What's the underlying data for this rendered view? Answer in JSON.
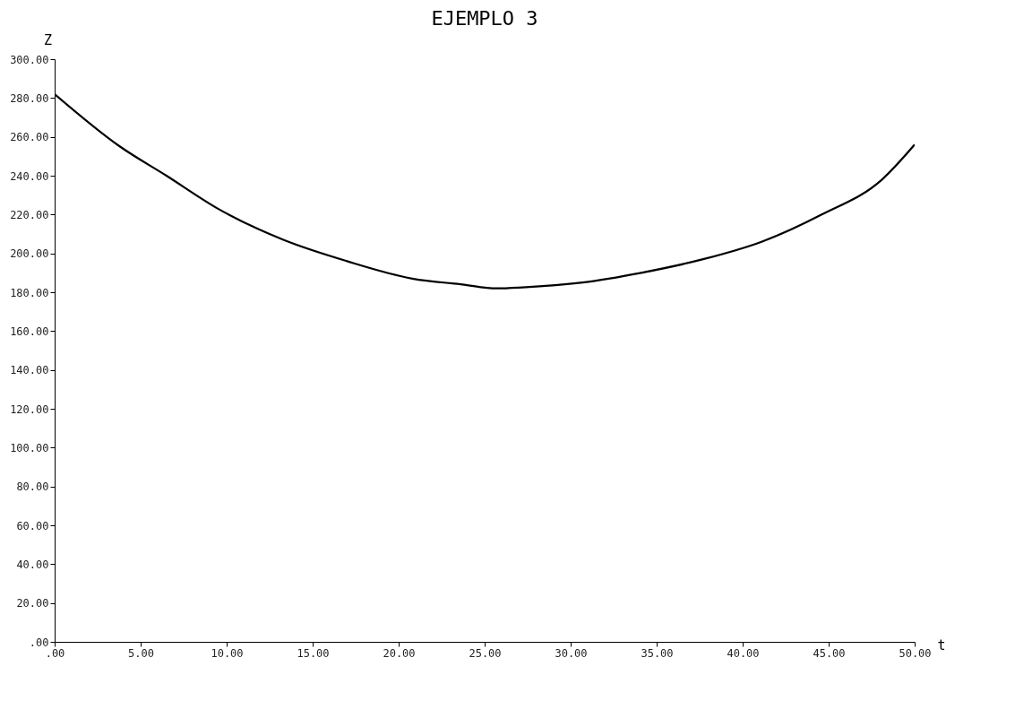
{
  "chart_data": {
    "type": "line",
    "title": "EJEMPLO 3",
    "xlabel": "t",
    "ylabel": "Z",
    "x": [
      0,
      3.8,
      6.5,
      9.5,
      13.3,
      17.0,
      20.8,
      23.7,
      25.7,
      27.2,
      30.7,
      34.1,
      37.7,
      41.1,
      44.6,
      48.1,
      50
    ],
    "series": [
      {
        "color": "#000000",
        "values": [
          282,
          255,
          240,
          223,
          207,
          196,
          187,
          184,
          182,
          182.5,
          185,
          190,
          197,
          206,
          220,
          238,
          256
        ]
      }
    ],
    "xlim": [
      0,
      50
    ],
    "xticks": [
      {
        "value": 0,
        "label": ".00"
      },
      {
        "value": 5,
        "label": "5.00"
      },
      {
        "value": 10,
        "label": "10.00"
      },
      {
        "value": 15,
        "label": "15.00"
      },
      {
        "value": 20,
        "label": "20.00"
      },
      {
        "value": 25,
        "label": "25.00"
      },
      {
        "value": 30,
        "label": "30.00"
      },
      {
        "value": 35,
        "label": "35.00"
      },
      {
        "value": 40,
        "label": "40.00"
      },
      {
        "value": 45,
        "label": "45.00"
      },
      {
        "value": 50,
        "label": "50.00"
      }
    ],
    "ylim": [
      0,
      300
    ],
    "yticks": [
      {
        "value": 0,
        "label": ".00"
      },
      {
        "value": 20,
        "label": "20.00"
      },
      {
        "value": 40,
        "label": "40.00"
      },
      {
        "value": 60,
        "label": "60.00"
      },
      {
        "value": 80,
        "label": "80.00"
      },
      {
        "value": 100,
        "label": "100.00"
      },
      {
        "value": 120,
        "label": "120.00"
      },
      {
        "value": 140,
        "label": "140.00"
      },
      {
        "value": 160,
        "label": "160.00"
      },
      {
        "value": 180,
        "label": "180.00"
      },
      {
        "value": 200,
        "label": "200.00"
      },
      {
        "value": 220,
        "label": "220.00"
      },
      {
        "value": 240,
        "label": "240.00"
      },
      {
        "value": 260,
        "label": "260.00"
      },
      {
        "value": 280,
        "label": "280.00"
      },
      {
        "value": 300,
        "label": "300.00"
      }
    ],
    "grid": false,
    "marker": "none",
    "line_style": "solid"
  }
}
